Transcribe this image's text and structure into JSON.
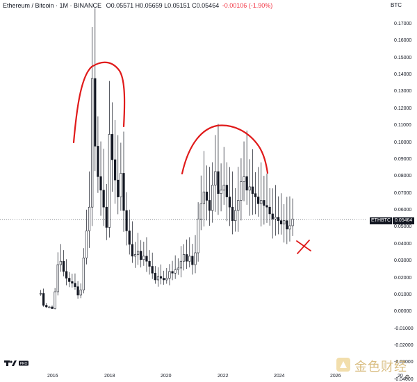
{
  "header": {
    "symbol": "Ethereum / Bitcoin · 1M · BINANCE",
    "ohlc": "O0.05571 H0.05659 L0.05151 C0.05464",
    "change": "-0.00106 (-1.90%)"
  },
  "currency_button": "BTC",
  "price_tag": {
    "ticker": "ETHBTC",
    "value": "0.05464"
  },
  "y_ticks": [
    "0.17000",
    "0.16000",
    "0.15000",
    "0.14000",
    "0.13000",
    "0.12000",
    "0.11000",
    "0.10000",
    "0.09000",
    "0.08000",
    "0.07000",
    "0.06000",
    "0.05000",
    "0.04000",
    "0.03000",
    "0.02000",
    "0.01000",
    "0.00000",
    "-0.01000",
    "-0.02000",
    "-0.03000",
    "-0.04000"
  ],
  "x_ticks": [
    "2016",
    "2018",
    "2020",
    "2022",
    "2024",
    "2026",
    "20"
  ],
  "logo": "TV PRO",
  "watermark": "金色财经",
  "colors": {
    "annotation": "#e01b1b",
    "candle": "#131722",
    "grid": "#f0f3fa"
  },
  "chart_data": {
    "type": "candlestick",
    "title": "",
    "xlabel": "",
    "ylabel": "",
    "ylim": [
      -0.04,
      0.175
    ],
    "x_range": [
      2015.6,
      2026.5
    ],
    "grid": false,
    "current_price": 0.05464,
    "series": [
      {
        "name": "",
        "points": [
          [
            2015.6,
            0.011
          ],
          [
            2015.7,
            0.004
          ],
          [
            2015.8,
            0.003
          ],
          [
            2015.9,
            0.003
          ],
          [
            2016.0,
            0.002
          ],
          [
            2016.1,
            0.012
          ],
          [
            2016.2,
            0.028
          ],
          [
            2016.3,
            0.03
          ],
          [
            2016.4,
            0.024
          ],
          [
            2016.5,
            0.02
          ],
          [
            2016.6,
            0.018
          ],
          [
            2016.7,
            0.017
          ],
          [
            2016.8,
            0.015
          ],
          [
            2016.9,
            0.01
          ],
          [
            2017.0,
            0.013
          ],
          [
            2017.1,
            0.032
          ],
          [
            2017.2,
            0.048
          ],
          [
            2017.3,
            0.062
          ],
          [
            2017.4,
            0.138
          ],
          [
            2017.5,
            0.098
          ],
          [
            2017.6,
            0.08
          ],
          [
            2017.7,
            0.072
          ],
          [
            2017.8,
            0.062
          ],
          [
            2017.9,
            0.05
          ],
          [
            2018.0,
            0.105
          ],
          [
            2018.1,
            0.09
          ],
          [
            2018.2,
            0.078
          ],
          [
            2018.3,
            0.068
          ],
          [
            2018.4,
            0.082
          ],
          [
            2018.5,
            0.06
          ],
          [
            2018.6,
            0.048
          ],
          [
            2018.7,
            0.04
          ],
          [
            2018.8,
            0.033
          ],
          [
            2018.9,
            0.034
          ],
          [
            2019.0,
            0.036
          ],
          [
            2019.1,
            0.031
          ],
          [
            2019.2,
            0.033
          ],
          [
            2019.3,
            0.03
          ],
          [
            2019.4,
            0.027
          ],
          [
            2019.5,
            0.023
          ],
          [
            2019.6,
            0.019
          ],
          [
            2019.7,
            0.021
          ],
          [
            2019.8,
            0.02
          ],
          [
            2019.9,
            0.019
          ],
          [
            2020.0,
            0.02
          ],
          [
            2020.1,
            0.024
          ],
          [
            2020.2,
            0.023
          ],
          [
            2020.3,
            0.025
          ],
          [
            2020.4,
            0.026
          ],
          [
            2020.5,
            0.03
          ],
          [
            2020.6,
            0.034
          ],
          [
            2020.7,
            0.03
          ],
          [
            2020.8,
            0.033
          ],
          [
            2020.9,
            0.028
          ],
          [
            2021.0,
            0.035
          ],
          [
            2021.1,
            0.055
          ],
          [
            2021.2,
            0.064
          ],
          [
            2021.3,
            0.071
          ],
          [
            2021.4,
            0.066
          ],
          [
            2021.5,
            0.06
          ],
          [
            2021.6,
            0.075
          ],
          [
            2021.7,
            0.083
          ],
          [
            2021.8,
            0.07
          ],
          [
            2021.9,
            0.072
          ],
          [
            2022.0,
            0.075
          ],
          [
            2022.1,
            0.068
          ],
          [
            2022.2,
            0.062
          ],
          [
            2022.3,
            0.054
          ],
          [
            2022.4,
            0.06
          ],
          [
            2022.5,
            0.066
          ],
          [
            2022.6,
            0.077
          ],
          [
            2022.7,
            0.08
          ],
          [
            2022.8,
            0.072
          ],
          [
            2022.9,
            0.074
          ],
          [
            2023.0,
            0.07
          ],
          [
            2023.1,
            0.068
          ],
          [
            2023.2,
            0.064
          ],
          [
            2023.3,
            0.066
          ],
          [
            2023.4,
            0.063
          ],
          [
            2023.5,
            0.062
          ],
          [
            2023.6,
            0.058
          ],
          [
            2023.7,
            0.055
          ],
          [
            2023.8,
            0.056
          ],
          [
            2023.9,
            0.054
          ],
          [
            2024.0,
            0.052
          ],
          [
            2024.1,
            0.054
          ],
          [
            2024.2,
            0.049
          ],
          [
            2024.3,
            0.051
          ],
          [
            2024.4,
            0.055
          ]
        ]
      }
    ]
  }
}
